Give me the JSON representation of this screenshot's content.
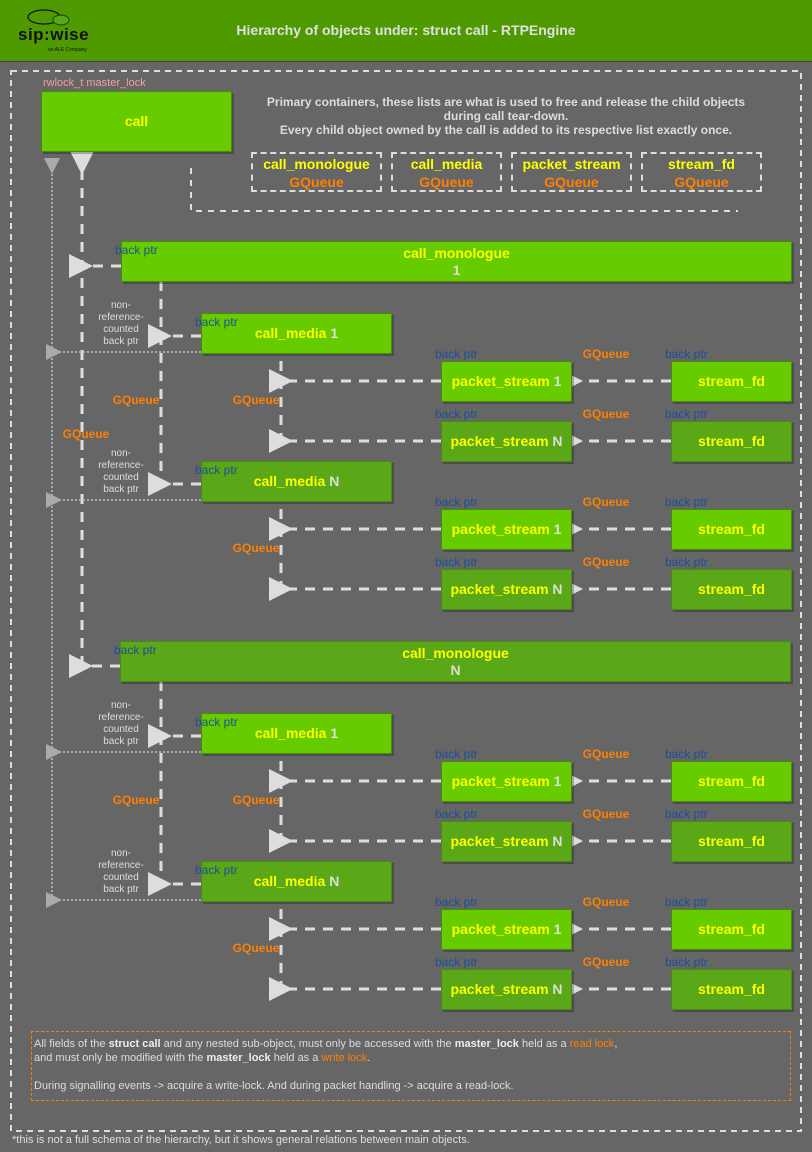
{
  "header": {
    "title": "Hierarchy of objects under: struct call - RTPEngine",
    "logo_text": "sip:wise",
    "logo_sub": "an ALE Company"
  },
  "lock_label": "rwlock_t master_lock",
  "call_label": "call",
  "containers_note": [
    "Primary containers, these lists are what is used to free and release the child objects",
    "during call tear-down.",
    "Every child object owned by the call is added to its respective list exactly once."
  ],
  "containers": [
    {
      "name": "call_monologue",
      "type": "GQueue"
    },
    {
      "name": "call_media",
      "type": "GQueue"
    },
    {
      "name": "packet_stream",
      "type": "GQueue"
    },
    {
      "name": "stream_fd",
      "type": "GQueue"
    }
  ],
  "labels": {
    "back_ptr": "back ptr",
    "gqueue": "GQueue",
    "non_ref": [
      "non-",
      "reference-",
      "counted",
      "back ptr"
    ]
  },
  "colors": {
    "header": "#4f9a00",
    "box": "#66cc00",
    "box_dark": "#5aa817",
    "name": "#ffff00",
    "gqueue": "#ff8000",
    "back_ptr": "#1a4f99",
    "background": "#666666"
  },
  "monologues": [
    {
      "name": "call_monologue",
      "index": "1",
      "medias": [
        {
          "name": "call_media",
          "index": "1",
          "streams": [
            {
              "name": "packet_stream",
              "index": "1",
              "fd": "stream_fd"
            },
            {
              "name": "packet_stream",
              "index": "N",
              "fd": "stream_fd"
            }
          ]
        },
        {
          "name": "call_media",
          "index": "N",
          "streams": [
            {
              "name": "packet_stream",
              "index": "1",
              "fd": "stream_fd"
            },
            {
              "name": "packet_stream",
              "index": "N",
              "fd": "stream_fd"
            }
          ]
        }
      ]
    },
    {
      "name": "call_monologue",
      "index": "N",
      "medias": [
        {
          "name": "call_media",
          "index": "1",
          "streams": [
            {
              "name": "packet_stream",
              "index": "1",
              "fd": "stream_fd"
            },
            {
              "name": "packet_stream",
              "index": "N",
              "fd": "stream_fd"
            }
          ]
        },
        {
          "name": "call_media",
          "index": "N",
          "streams": [
            {
              "name": "packet_stream",
              "index": "1",
              "fd": "stream_fd"
            },
            {
              "name": "packet_stream",
              "index": "N",
              "fd": "stream_fd"
            }
          ]
        }
      ]
    }
  ],
  "note": {
    "l1_a": "All fields of the ",
    "l1_b": "struct call",
    "l1_c": " and any nested sub-object, must only be accessed with the ",
    "l1_d": "master_lock",
    "l1_e": " held as a ",
    "l1_f": "read lock",
    "l1_g": ",",
    "l2_a": "and must only be modified with the ",
    "l2_b": "master_lock",
    "l2_c": " held as a ",
    "l2_d": "write lock",
    "l2_e": ".",
    "l3": "During signalling events -> acquire a write-lock. And during packet handling -> acquire a read-lock."
  },
  "footnote": "*this is not a full schema of the hierarchy, but it shows general relations between main objects."
}
